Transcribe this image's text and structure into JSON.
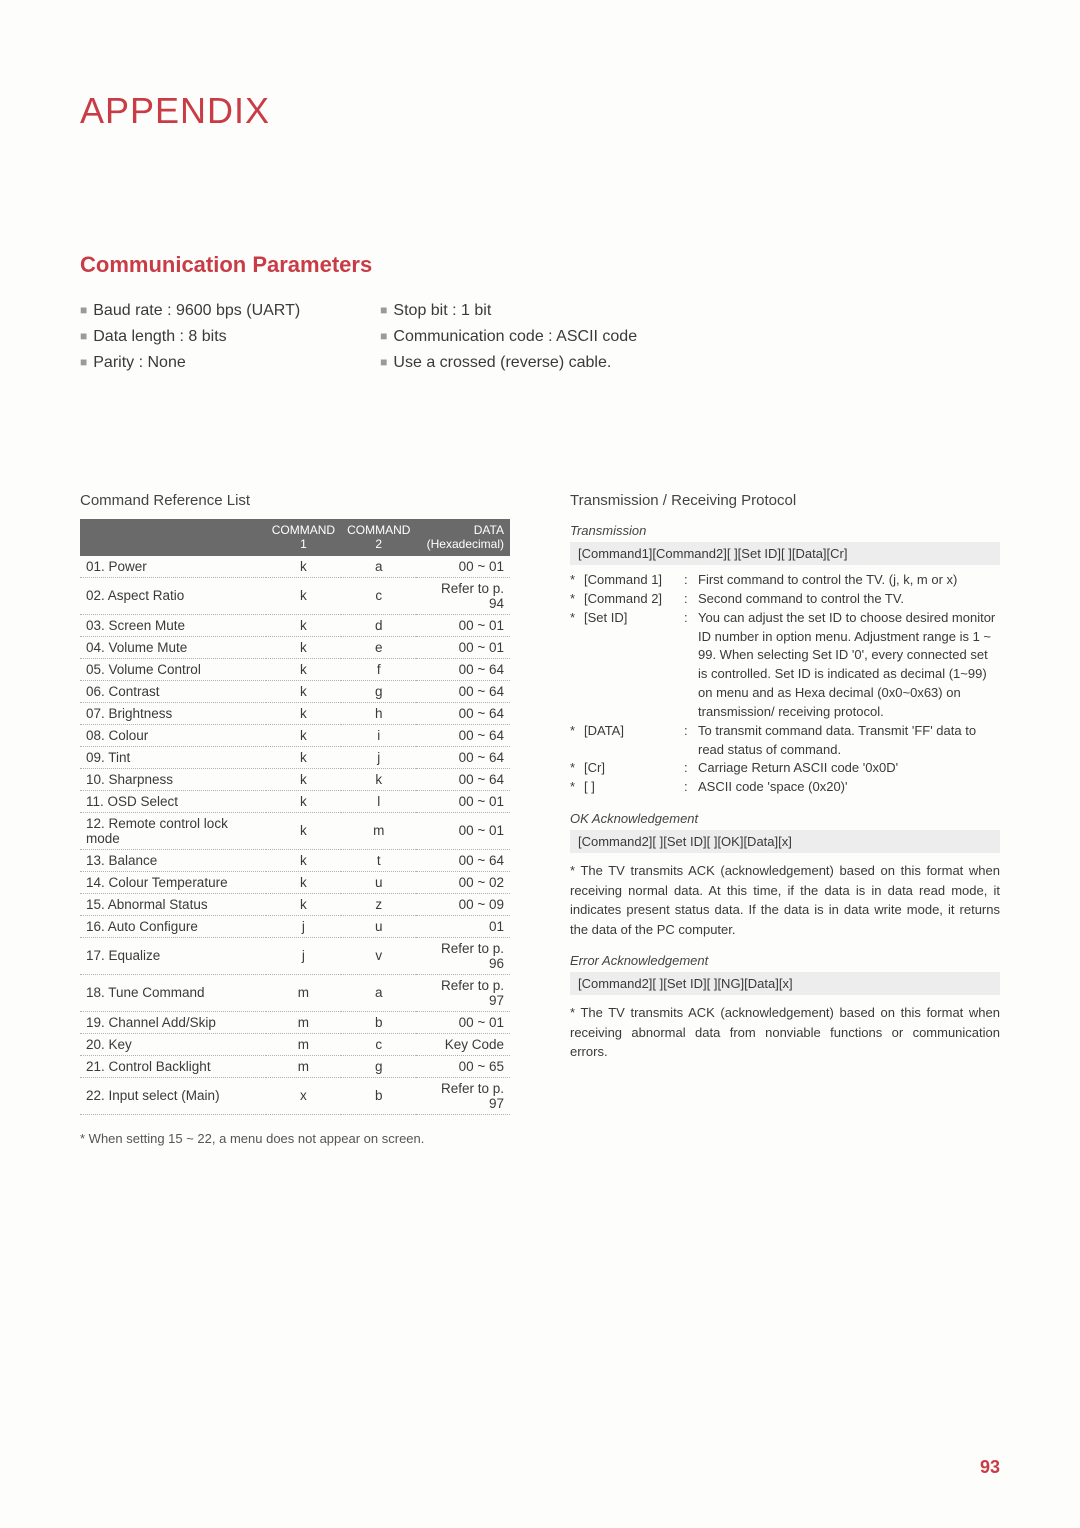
{
  "page": {
    "title": "APPENDIX",
    "section": "Communication Parameters",
    "page_number": "93"
  },
  "params": {
    "left": [
      "Baud rate : 9600 bps (UART)",
      "Data length : 8 bits",
      "Parity : None"
    ],
    "right": [
      "Stop bit : 1 bit",
      "Communication code : ASCII code",
      "Use a crossed (reverse) cable."
    ]
  },
  "cmd_table": {
    "heading": "Command Reference List",
    "columns": [
      "",
      "COMMAND 1",
      "COMMAND 2",
      "DATA (Hexadecimal)"
    ],
    "rows": [
      [
        "01. Power",
        "k",
        "a",
        "00 ~ 01"
      ],
      [
        "02. Aspect Ratio",
        "k",
        "c",
        "Refer to p. 94"
      ],
      [
        "03. Screen Mute",
        "k",
        "d",
        "00 ~ 01"
      ],
      [
        "04. Volume Mute",
        "k",
        "e",
        "00 ~ 01"
      ],
      [
        "05. Volume Control",
        "k",
        "f",
        "00 ~ 64"
      ],
      [
        "06. Contrast",
        "k",
        "g",
        "00 ~ 64"
      ],
      [
        "07. Brightness",
        "k",
        "h",
        "00 ~ 64"
      ],
      [
        "08. Colour",
        "k",
        "i",
        "00 ~ 64"
      ],
      [
        "09. Tint",
        "k",
        "j",
        "00 ~ 64"
      ],
      [
        "10. Sharpness",
        "k",
        "k",
        "00 ~ 64"
      ],
      [
        "11. OSD Select",
        "k",
        "l",
        "00 ~ 01"
      ],
      [
        "12. Remote control lock mode",
        "k",
        "m",
        "00 ~ 01"
      ],
      [
        "13. Balance",
        "k",
        "t",
        "00 ~ 64"
      ],
      [
        "14. Colour Temperature",
        "k",
        "u",
        "00 ~ 02"
      ],
      [
        "15. Abnormal Status",
        "k",
        "z",
        "00 ~ 09"
      ],
      [
        "16. Auto Configure",
        "j",
        "u",
        "01"
      ],
      [
        "17. Equalize",
        "j",
        "v",
        "Refer to p. 96"
      ],
      [
        "18. Tune Command",
        "m",
        "a",
        "Refer to p. 97"
      ],
      [
        "19. Channel Add/Skip",
        "m",
        "b",
        "00 ~ 01"
      ],
      [
        "20. Key",
        "m",
        "c",
        "Key Code"
      ],
      [
        "21. Control Backlight",
        "m",
        "g",
        "00 ~ 65"
      ],
      [
        "22. Input select (Main)",
        "x",
        "b",
        "Refer to p. 97"
      ]
    ],
    "note": "* When setting 15 ~ 22, a menu does not appear on screen."
  },
  "protocol": {
    "heading": "Transmission / Receiving Protocol",
    "transmission_label": "Transmission",
    "transmission_format": "[Command1][Command2][  ][Set ID][  ][Data][Cr]",
    "defs": [
      {
        "label": "[Command 1]",
        "desc": "First command to control the TV. (j, k, m or x)"
      },
      {
        "label": "[Command 2]",
        "desc": "Second command to control the TV."
      },
      {
        "label": "[Set ID]",
        "desc": "You can adjust the set ID to choose desired monitor ID number in option menu. Adjustment range is 1 ~ 99. When selecting Set ID '0', every connected set is controlled. Set ID is indicated as decimal (1~99) on menu and as Hexa decimal (0x0~0x63) on transmission/ receiving protocol."
      },
      {
        "label": "[DATA]",
        "desc": "To transmit command data. Transmit 'FF' data to read status of command."
      },
      {
        "label": "[Cr]",
        "desc": "Carriage Return ASCII code '0x0D'"
      },
      {
        "label": "[   ]",
        "desc": "ASCII code 'space (0x20)'"
      }
    ],
    "ok_label": "OK Acknowledgement",
    "ok_format": "[Command2][  ][Set ID][  ][OK][Data][x]",
    "ok_text": "* The TV transmits ACK (acknowledgement) based on this format when receiving normal data. At this time, if the data is in data read mode, it indicates present status data. If the data is in data write mode, it returns the data of the PC computer.",
    "err_label": "Error Acknowledgement",
    "err_format": "[Command2][  ][Set ID][  ][NG][Data][x]",
    "err_text": "* The TV transmits ACK (acknowledgement) based on this format when receiving abnormal data from nonviable functions or communication errors."
  }
}
